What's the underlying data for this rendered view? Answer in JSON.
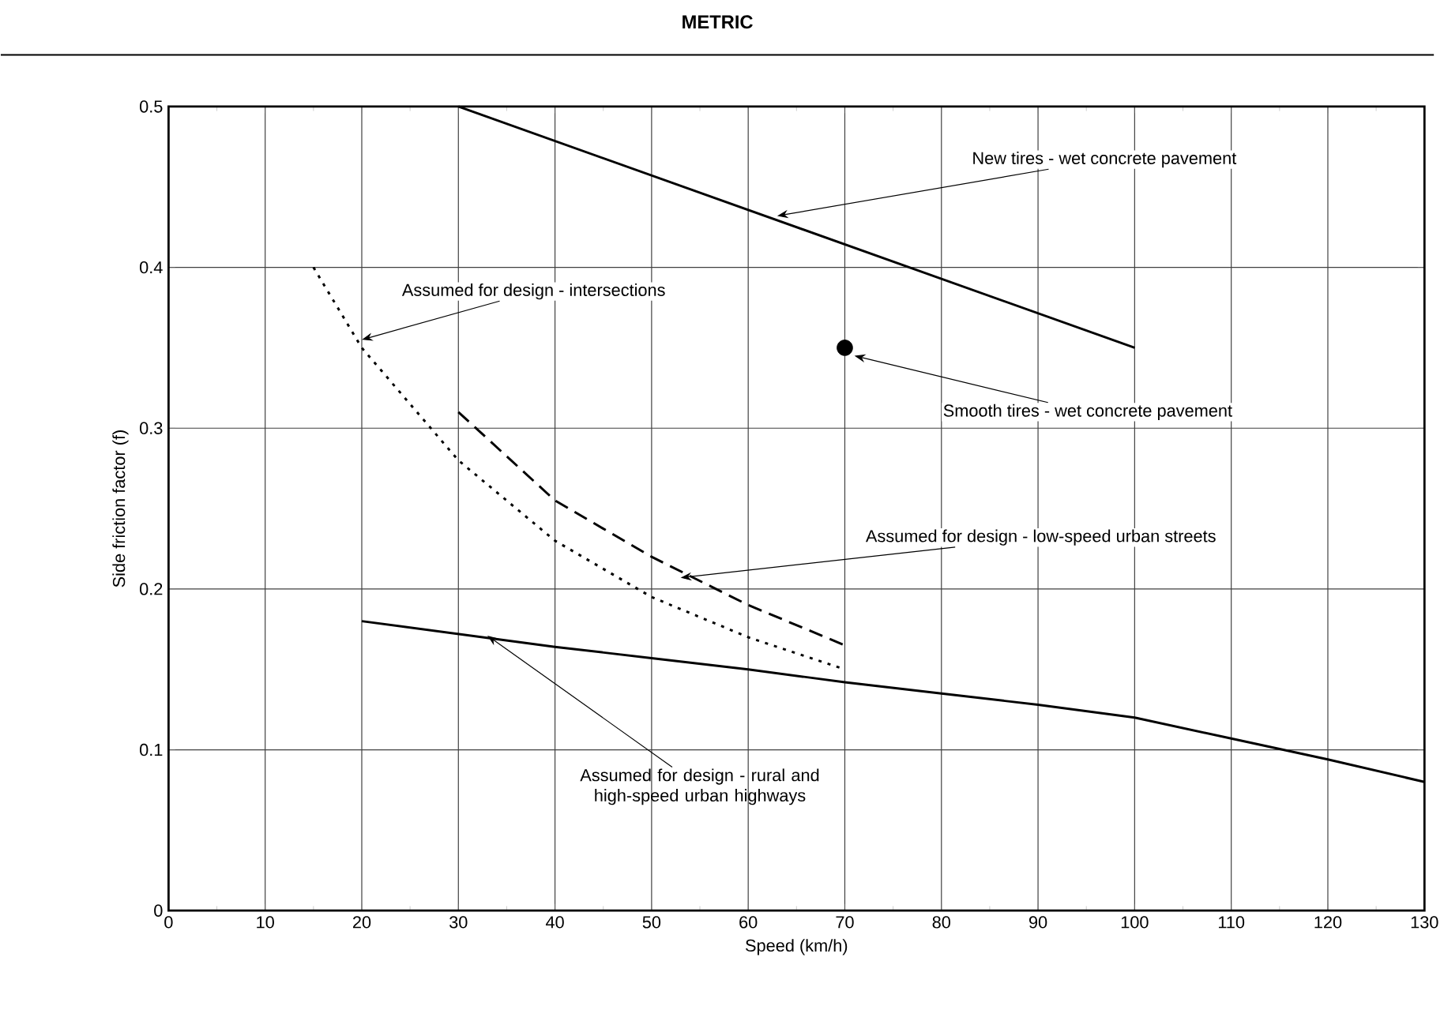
{
  "chart_data": {
    "type": "line",
    "title": "METRIC",
    "xlabel": "Speed (km/h)",
    "ylabel": "Side friction factor (f)",
    "xlim": [
      0,
      130
    ],
    "ylim": [
      0,
      0.5
    ],
    "xticks": [
      0,
      10,
      20,
      30,
      40,
      50,
      60,
      70,
      80,
      90,
      100,
      110,
      120,
      130
    ],
    "yticks": [
      0,
      0.1,
      0.2,
      0.3,
      0.4,
      0.5
    ],
    "grid": true,
    "series": [
      {
        "color": "#000000",
        "line_style": "solid",
        "x": [
          30,
          100
        ],
        "values": [
          0.5,
          0.35
        ]
      },
      {
        "type": "scatter",
        "color": "#000000",
        "x": [
          70
        ],
        "values": [
          0.35
        ]
      },
      {
        "color": "#000000",
        "line_style": "dotted",
        "x": [
          15,
          20,
          30,
          40,
          50,
          60,
          70
        ],
        "values": [
          0.4,
          0.35,
          0.28,
          0.23,
          0.195,
          0.17,
          0.15
        ]
      },
      {
        "color": "#000000",
        "line_style": "dashed",
        "x": [
          30,
          40,
          50,
          60,
          70
        ],
        "values": [
          0.31,
          0.255,
          0.22,
          0.19,
          0.165
        ]
      },
      {
        "color": "#000000",
        "line_style": "solid",
        "x": [
          20,
          30,
          40,
          50,
          60,
          70,
          80,
          90,
          100,
          110,
          120,
          130
        ],
        "values": [
          0.18,
          0.172,
          0.164,
          0.157,
          0.15,
          0.142,
          0.135,
          0.128,
          0.12,
          0.107,
          0.094,
          0.08
        ]
      }
    ],
    "annotations": [
      {
        "text": "New tires - wet concrete pavement",
        "x": 63,
        "y": 0.432
      },
      {
        "text": "Assumed for design - intersections",
        "x": 20,
        "y": 0.355
      },
      {
        "text": "Smooth tires - wet concrete pavement",
        "x": 71,
        "y": 0.345
      },
      {
        "text": "Assumed for design - low-speed urban streets",
        "x": 53,
        "y": 0.207
      },
      {
        "text": "Assumed for design - rural and high-speed urban highways",
        "x": 33,
        "y": 0.171
      }
    ]
  }
}
